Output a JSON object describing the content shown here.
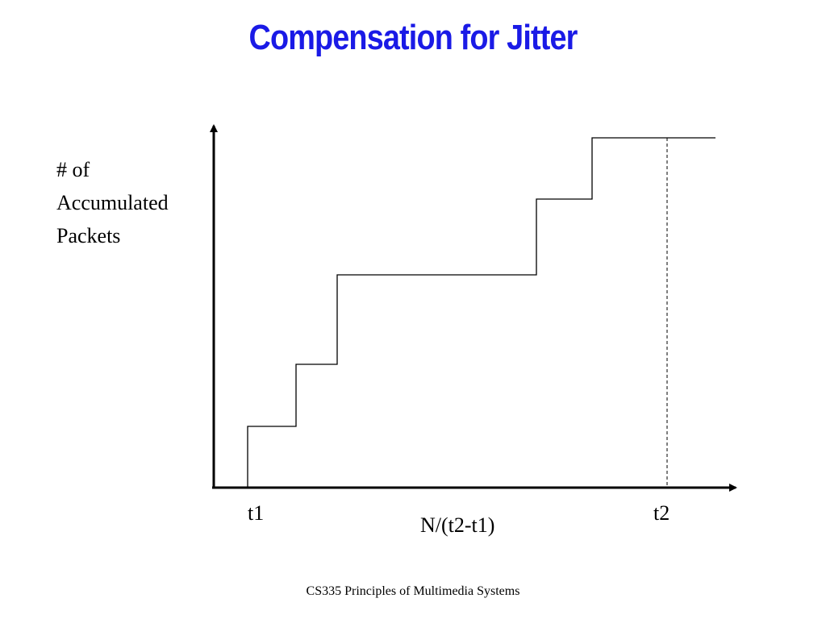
{
  "title": "Compensation for Jitter",
  "colors": {
    "title": "#1a1ae6",
    "line": "#000000"
  },
  "diagram": {
    "y_label_lines": [
      "# of",
      "Accumulated",
      "Packets"
    ],
    "x_label": "N/(t2-t1)",
    "tick_t1": "t1",
    "tick_t2": "t2",
    "curve": "step",
    "marker_at_t2": "dashed vertical line"
  },
  "footer": "CS335 Principles of Multimedia Systems"
}
